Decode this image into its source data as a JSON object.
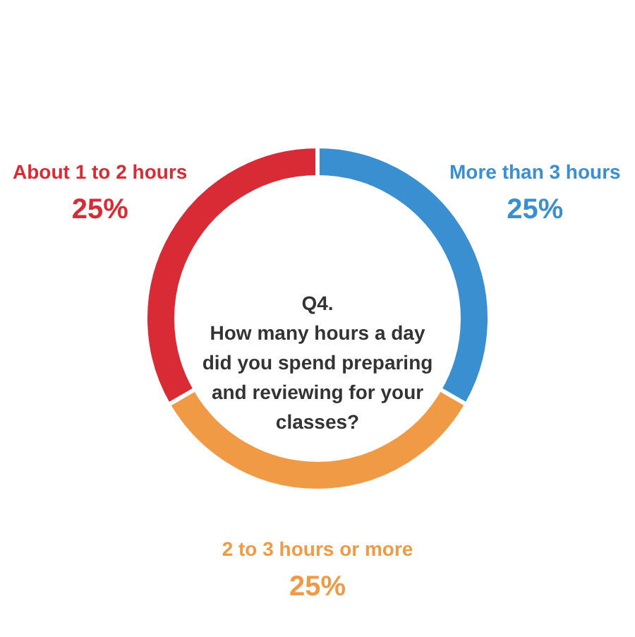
{
  "chart_data": {
    "type": "donut",
    "title": "Q4.\nHow many hours a day\ndid you spend preparing\nand reviewing for your\nclasses?",
    "categories": [
      "More than 3 hours",
      "2 to 3 hours or more",
      "About 1 to 2 hours"
    ],
    "values": [
      25,
      25,
      25
    ],
    "value_labels": [
      "25%",
      "25%",
      "25%"
    ],
    "colors": [
      "#3a8fd0",
      "#f09a46",
      "#d92b35"
    ]
  }
}
